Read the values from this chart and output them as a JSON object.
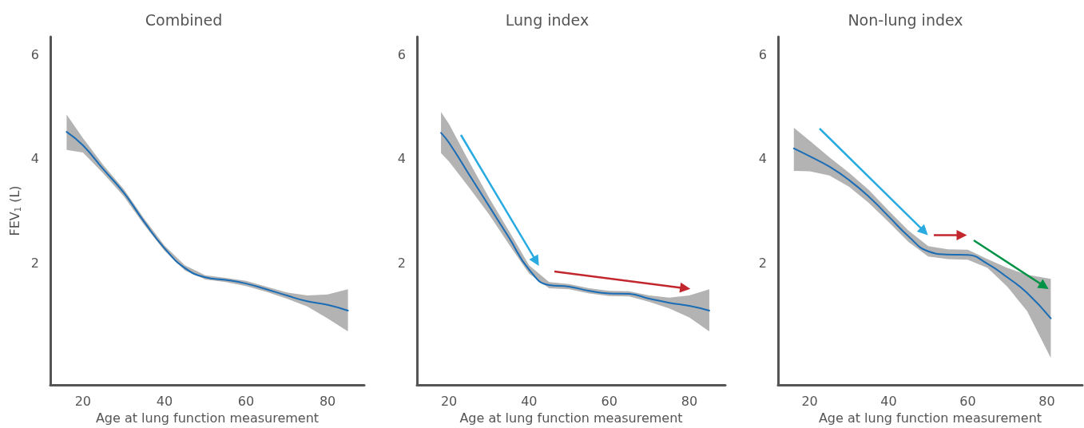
{
  "chart_data": [
    {
      "type": "line",
      "title": "Combined",
      "xlabel": "Age at lung function measurement",
      "ylabel": "FEV$_{1}$ (L)",
      "xlim": [
        12,
        89
      ],
      "ylim": [
        -0.35,
        6.35
      ],
      "xticks": [
        20,
        40,
        60,
        80
      ],
      "yticks": [
        2,
        4,
        6
      ],
      "grid": false,
      "marker": "none",
      "line_style": "solid",
      "series": [
        {
          "color": "#1a6cb5",
          "x": [
            16,
            20,
            25,
            30,
            35,
            40,
            45,
            50,
            55,
            60,
            65,
            70,
            75,
            80,
            85
          ],
          "values": [
            4.52,
            4.26,
            3.8,
            3.35,
            2.79,
            2.28,
            1.9,
            1.72,
            1.67,
            1.6,
            1.49,
            1.37,
            1.26,
            1.19,
            1.08
          ],
          "lower": [
            4.17,
            4.12,
            3.72,
            3.28,
            2.73,
            2.23,
            1.85,
            1.68,
            1.63,
            1.55,
            1.44,
            1.31,
            1.16,
            0.93,
            0.68
          ],
          "upper": [
            4.85,
            4.4,
            3.88,
            3.42,
            2.85,
            2.33,
            1.95,
            1.76,
            1.71,
            1.65,
            1.54,
            1.43,
            1.37,
            1.39,
            1.49
          ]
        }
      ]
    },
    {
      "type": "line",
      "title": "Lung index",
      "xlabel": "Age at lung function measurement",
      "xlim": [
        12,
        89
      ],
      "ylim": [
        -0.35,
        6.35
      ],
      "xticks": [
        20,
        40,
        60,
        80
      ],
      "yticks": [
        2,
        4,
        6
      ],
      "grid": false,
      "marker": "none",
      "line_style": "solid",
      "series": [
        {
          "color": "#1a6cb5",
          "x": [
            18,
            20,
            25,
            30,
            35,
            40,
            45,
            50,
            55,
            60,
            65,
            70,
            75,
            80,
            85
          ],
          "values": [
            4.5,
            4.31,
            3.7,
            3.09,
            2.48,
            1.87,
            1.57,
            1.54,
            1.46,
            1.41,
            1.4,
            1.31,
            1.23,
            1.17,
            1.08
          ],
          "lower": [
            4.11,
            3.95,
            3.45,
            2.93,
            2.35,
            1.79,
            1.51,
            1.49,
            1.41,
            1.36,
            1.35,
            1.25,
            1.12,
            0.95,
            0.68
          ],
          "upper": [
            4.9,
            4.67,
            3.95,
            3.25,
            2.61,
            1.95,
            1.63,
            1.59,
            1.51,
            1.46,
            1.45,
            1.37,
            1.33,
            1.37,
            1.49
          ]
        }
      ]
    },
    {
      "type": "line",
      "title": "Non-lung index",
      "xlabel": "Age at lung function measurement",
      "xlim": [
        12,
        89
      ],
      "ylim": [
        -0.35,
        6.35
      ],
      "xticks": [
        20,
        40,
        60,
        80
      ],
      "yticks": [
        2,
        4,
        6
      ],
      "grid": false,
      "marker": "none",
      "line_style": "solid",
      "series": [
        {
          "color": "#1a6cb5",
          "x": [
            16,
            20,
            25,
            30,
            35,
            40,
            45,
            50,
            55,
            60,
            65,
            70,
            75,
            81
          ],
          "values": [
            4.2,
            4.05,
            3.85,
            3.59,
            3.27,
            2.89,
            2.51,
            2.22,
            2.16,
            2.15,
            1.98,
            1.72,
            1.42,
            0.93
          ],
          "lower": [
            3.77,
            3.76,
            3.68,
            3.46,
            3.15,
            2.78,
            2.4,
            2.12,
            2.07,
            2.06,
            1.9,
            1.54,
            1.07,
            0.17
          ],
          "upper": [
            4.6,
            4.35,
            4.03,
            3.73,
            3.4,
            3.0,
            2.62,
            2.32,
            2.26,
            2.25,
            2.07,
            1.9,
            1.77,
            1.69
          ]
        }
      ]
    }
  ]
}
